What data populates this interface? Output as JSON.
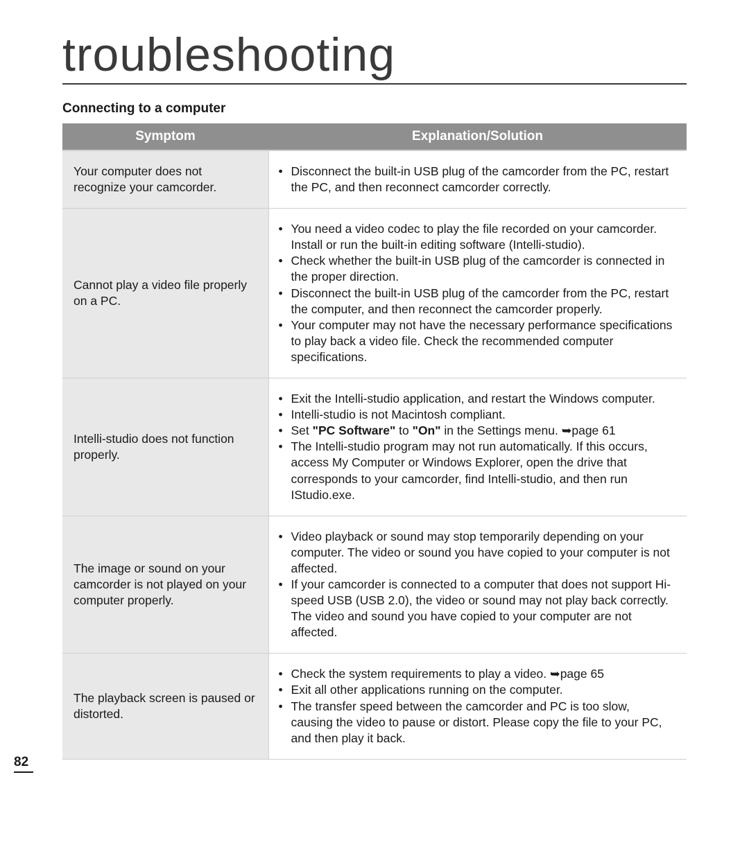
{
  "page": {
    "title": "troubleshooting",
    "section": "Connecting to a computer",
    "page_number": "82"
  },
  "table": {
    "headers": {
      "symptom": "Symptom",
      "solution": "Explanation/Solution"
    },
    "column_widths_pct": [
      33,
      67
    ],
    "colors": {
      "header_bg": "#8f8f8f",
      "header_text": "#ffffff",
      "symptom_bg": "#e8e8e8",
      "solution_bg": "#ffffff",
      "border": "#cfcfcf",
      "text": "#1a1a1a"
    },
    "font_sizes_pt": {
      "header": 14,
      "body": 13
    },
    "rows": [
      {
        "symptom": "Your computer does not recognize your camcorder.",
        "solutions": [
          {
            "text": "Disconnect the built-in USB plug of the camcorder from the PC, restart the PC, and then reconnect camcorder correctly."
          }
        ]
      },
      {
        "symptom": "Cannot play a video file properly on a PC.",
        "solutions": [
          {
            "text": "You need a video codec to play the file recorded on your camcorder. Install or run the built-in editing software (Intelli-studio)."
          },
          {
            "text": "Check whether the built-in USB plug of the camcorder is connected in the proper direction."
          },
          {
            "text": "Disconnect the built-in USB plug of the camcorder from the PC, restart the computer, and then reconnect the camcorder properly."
          },
          {
            "text": "Your computer may not have the necessary performance specifications to play back a video file. Check the recommended computer specifications."
          }
        ]
      },
      {
        "symptom": "Intelli-studio does not function properly.",
        "solutions": [
          {
            "text": "Exit the Intelli-studio application, and restart the Windows computer."
          },
          {
            "text": "Intelli-studio is not Macintosh compliant."
          },
          {
            "pre": "Set ",
            "bold1": "\"PC Software\"",
            "mid": " to ",
            "bold2": "\"On\"",
            "post": " in the Settings menu. ",
            "pageref": "page 61"
          },
          {
            "text": "The Intelli-studio program may not run automatically. If this occurs, access My Computer or Windows Explorer, open the drive that corresponds to your camcorder, find Intelli-studio, and then run IStudio.exe."
          }
        ]
      },
      {
        "symptom": "The image or sound on your camcorder is not played on your computer properly.",
        "solutions": [
          {
            "text": "Video playback or sound may stop temporarily depending on your computer. The video or sound you have copied to your computer is not affected."
          },
          {
            "text": "If your camcorder is connected to a computer that does not support Hi-speed USB (USB 2.0), the video or sound may not play back correctly.",
            "trail": "The video and sound you have copied to your computer are not affected."
          }
        ]
      },
      {
        "symptom": "The playback screen is paused or distorted.",
        "solutions": [
          {
            "pre": "Check the system requirements to play a video. ",
            "pageref": "page 65"
          },
          {
            "text": "Exit all other applications running on the computer."
          },
          {
            "text": "The transfer speed between the camcorder and PC is too slow, causing the video to pause or distort. Please copy the file to your PC, and then play it back."
          }
        ]
      }
    ]
  }
}
